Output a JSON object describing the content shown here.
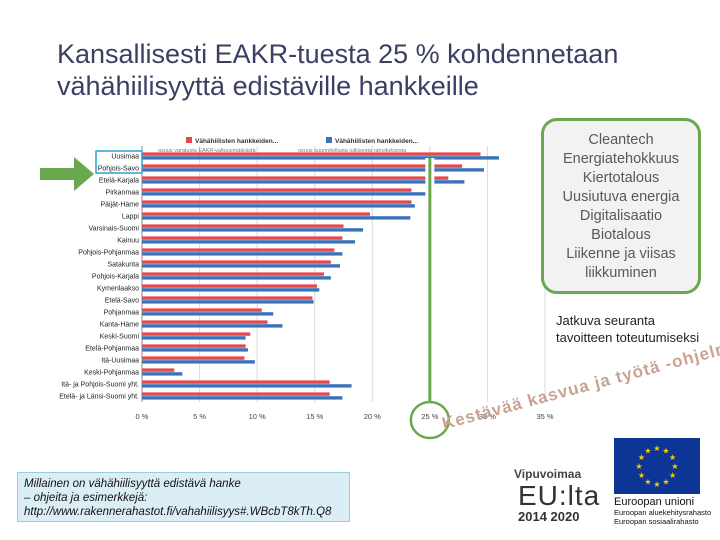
{
  "slide": {
    "title_line1": "Kansallisesti EAKR-tuesta 25 % kohdennetaan",
    "title_line2": "vähähiilisyyttä edistäville hankkeille"
  },
  "themes_box": {
    "items": [
      "Cleantech",
      "Energiatehokkuus",
      "Kiertotalous",
      "Uusiutuva energia",
      "Digitalisaatio",
      "Biotalous",
      "Liikenne ja viisas",
      "liikkuminen"
    ],
    "border_color": "#6aa84f"
  },
  "monitoring_text": {
    "line1": "Jatkuva seuranta",
    "line2": "tavoitteen toteutumiseksi"
  },
  "info_box": {
    "line1": "Millainen on vähähiilisyyttä edistävä hanke",
    "line2": "– ohjeita ja esimerkkejä:",
    "line3": "http://www.rakennerahastot.fi/vahahiilisyys#.WBcbT8kTh.Q8"
  },
  "slogan": "Kestävää kasvua ja työtä -ohjelma",
  "vipuvoimaa": {
    "name": "Vipuvoimaa",
    "eu": "EU:lta",
    "years": "2014  2020"
  },
  "eu_logo": {
    "name": "Euroopan unioni",
    "fund_line1": "Euroopan aluekehitysrahasto",
    "fund_line2": "Euroopan sosiaalirahasto"
  },
  "chart_data": {
    "type": "bar",
    "orientation": "horizontal",
    "categories": [
      "Uusimaa",
      "Pohjois-Savo",
      "Etelä-Karjala",
      "Pirkanmaa",
      "Päijät-Häme",
      "Lappi",
      "Varsinais-Suomi",
      "Kainuu",
      "Pohjois-Pohjanmaa",
      "Satakunta",
      "Pohjois-Karjala",
      "Kymenlaakso",
      "Etelä-Savo",
      "Pohjanmaa",
      "Kanta-Häme",
      "Keski-Suomi",
      "Etelä-Pohjanmaa",
      "Itä-Uusimaa",
      "Keski-Pohjanmaa",
      "Itä- ja Pohjois-Suomi yht.",
      "Etelä- ja Länsi-Suomi yht."
    ],
    "series": [
      {
        "name": "Vähähiilisten hankkeiden...",
        "color": "#e8484d",
        "values": [
          29.4,
          27.8,
          26.6,
          23.4,
          23.4,
          19.8,
          17.5,
          17.4,
          16.7,
          16.4,
          15.8,
          15.2,
          14.8,
          10.4,
          10.9,
          9.4,
          9.0,
          8.9,
          2.8,
          16.3,
          16.3
        ]
      },
      {
        "name": "Vähähiilisten hankkeiden...",
        "color": "#3b73b9",
        "values": [
          31.0,
          29.7,
          28.0,
          25.1,
          23.7,
          23.3,
          19.2,
          18.5,
          17.4,
          17.2,
          16.4,
          15.4,
          14.9,
          11.4,
          12.2,
          9.0,
          9.2,
          9.8,
          3.5,
          18.2,
          17.4
        ]
      }
    ],
    "series_notes": [
      "osuus varatusta EAKR-valtuusmäärästä",
      "osuus suunnitellusta julkisesta rahoituksesta"
    ],
    "xlim": [
      0,
      35
    ],
    "xticks": [
      "0 %",
      "5 %",
      "10 %",
      "15 %",
      "20 %",
      "25 %",
      "30 %",
      "35 %"
    ],
    "grid": true,
    "legend": "top",
    "highlight_x": 25,
    "highlight_color": "#6aa84f"
  }
}
